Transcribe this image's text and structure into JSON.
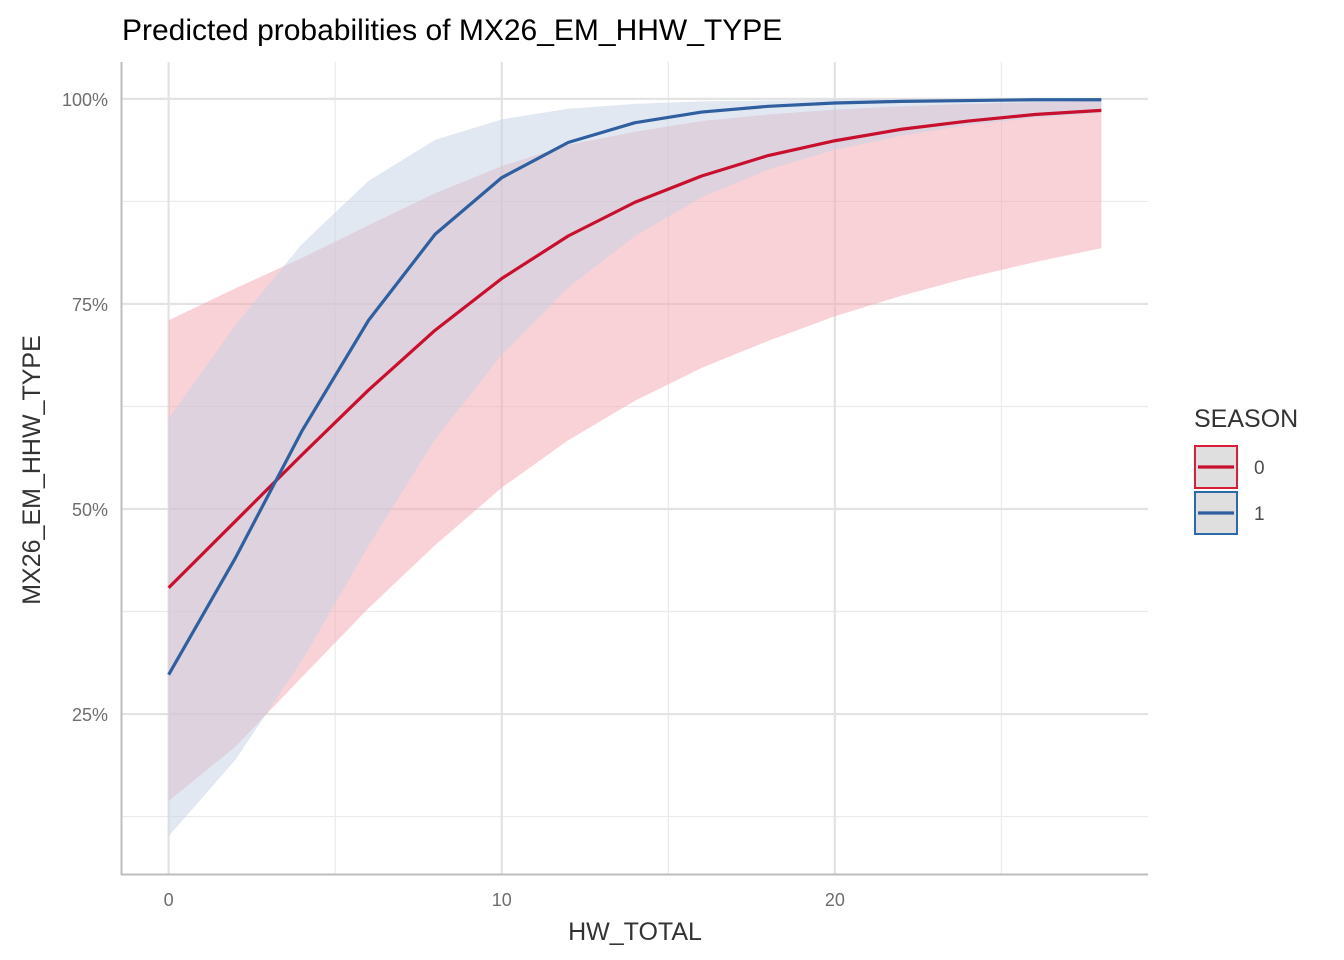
{
  "chart_data": {
    "type": "line",
    "title": "Predicted probabilities of MX26_EM_HHW_TYPE",
    "xlabel": "HW_TOTAL",
    "ylabel": "MX26_EM_HHW_TYPE",
    "xlim": [
      -1.4,
      29.4
    ],
    "ylim": [
      5.5,
      104.5
    ],
    "x_ticks": [
      0,
      10,
      20
    ],
    "x_tick_labels": [
      "0",
      "10",
      "20"
    ],
    "y_ticks": [
      25,
      50,
      75,
      100
    ],
    "y_tick_labels": [
      "25%",
      "50%",
      "75%",
      "100%"
    ],
    "x_minor_ticks": [
      5,
      15,
      25
    ],
    "y_minor_ticks": [
      12.5,
      37.5,
      62.5,
      87.5
    ],
    "grid": true,
    "legend": {
      "title": "SEASON",
      "position": "right",
      "entries": [
        "0",
        "1"
      ]
    },
    "x": [
      0,
      2,
      4,
      6,
      8,
      10,
      12,
      14,
      16,
      18,
      20,
      22,
      24,
      26,
      28
    ],
    "series": [
      {
        "name": "0",
        "color": "#c8102e",
        "ribbon_color": "#f4a6b0",
        "values": [
          40.4,
          48.5,
          56.6,
          64.5,
          71.8,
          78.1,
          83.3,
          87.4,
          90.6,
          93.1,
          94.9,
          96.3,
          97.3,
          98.1,
          98.6
        ],
        "lower": [
          14.4,
          21.0,
          29.5,
          37.9,
          45.6,
          52.6,
          58.4,
          63.2,
          67.2,
          70.5,
          73.5,
          76.0,
          78.2,
          80.1,
          81.8
        ],
        "upper": [
          73.0,
          76.9,
          80.6,
          84.6,
          88.5,
          91.8,
          94.4,
          96.0,
          97.3,
          98.1,
          98.7,
          99.1,
          99.4,
          99.6,
          99.7
        ]
      },
      {
        "name": "1",
        "color": "#2f5f9e",
        "ribbon_color": "#c4d2e6",
        "values": [
          29.8,
          44.0,
          59.5,
          73.0,
          83.5,
          90.4,
          94.7,
          97.1,
          98.4,
          99.1,
          99.5,
          99.7,
          99.8,
          99.9,
          99.9
        ],
        "lower": [
          10.1,
          19.4,
          31.5,
          45.5,
          58.5,
          68.8,
          77.0,
          83.3,
          88.0,
          91.4,
          93.8,
          95.5,
          96.8,
          97.7,
          98.3
        ],
        "upper": [
          61.0,
          72.4,
          82.3,
          90.0,
          95.0,
          97.5,
          98.8,
          99.4,
          99.7,
          99.8,
          99.9,
          99.95,
          99.97,
          99.98,
          99.99
        ]
      }
    ]
  }
}
